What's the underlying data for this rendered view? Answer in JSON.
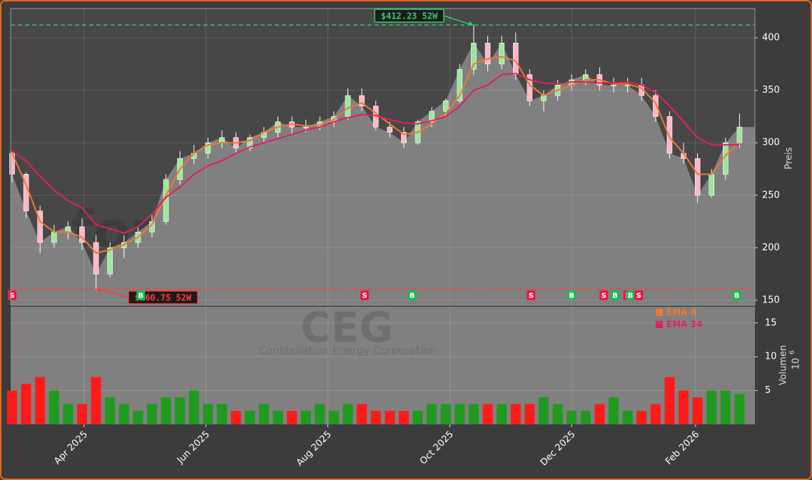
{
  "chart_data": [
    {
      "type": "candlestick",
      "watermark": "forexsignale.trade",
      "ticker": "CEG",
      "company": "Constellation Energy Corporation",
      "ylabel": "Preis",
      "xlim": [
        -0.1,
        53.1
      ],
      "ylim": [
        145.2,
        427.9
      ],
      "yticks": [
        150,
        200,
        250,
        300,
        350,
        400
      ],
      "grid": true,
      "up_color": "#9be89b",
      "down_color": "#ffb6c8",
      "area_color": "#808080",
      "open": [
        290,
        270,
        235,
        205,
        215,
        220,
        205,
        175,
        200,
        205,
        215,
        225,
        265,
        285,
        290,
        300,
        305,
        295,
        305,
        310,
        320,
        315,
        315,
        320,
        325,
        345,
        335,
        315,
        310,
        300,
        320,
        330,
        340,
        370,
        395,
        375,
        395,
        365,
        340,
        345,
        355,
        360,
        365,
        355,
        355,
        355,
        345,
        325,
        290,
        285,
        250,
        270,
        300
      ],
      "high": [
        292,
        272,
        240,
        222,
        225,
        228,
        212,
        205,
        212,
        220,
        232,
        270,
        292,
        298,
        305,
        312,
        310,
        308,
        315,
        325,
        325,
        322,
        325,
        330,
        352,
        352,
        340,
        320,
        315,
        322,
        334,
        342,
        375,
        412.23,
        402,
        402,
        405,
        370,
        350,
        360,
        365,
        370,
        372,
        362,
        362,
        362,
        350,
        330,
        300,
        290,
        275,
        305,
        328
      ],
      "low": [
        262,
        228,
        195,
        200,
        208,
        198,
        160.75,
        172,
        190,
        200,
        210,
        222,
        260,
        280,
        285,
        295,
        290,
        292,
        300,
        305,
        308,
        310,
        312,
        315,
        322,
        330,
        312,
        305,
        295,
        298,
        315,
        325,
        338,
        365,
        368,
        370,
        360,
        335,
        330,
        340,
        350,
        355,
        350,
        348,
        348,
        340,
        320,
        285,
        280,
        243,
        248,
        265,
        295
      ],
      "close": [
        270,
        235,
        205,
        215,
        220,
        205,
        175,
        200,
        205,
        215,
        225,
        265,
        285,
        290,
        300,
        305,
        295,
        305,
        310,
        320,
        315,
        315,
        320,
        325,
        345,
        335,
        315,
        310,
        300,
        320,
        330,
        340,
        370,
        395,
        375,
        395,
        365,
        340,
        345,
        355,
        360,
        365,
        355,
        355,
        355,
        345,
        325,
        290,
        285,
        250,
        270,
        300,
        315
      ],
      "series": [
        {
          "name": "EMA 8",
          "color": "#f07830",
          "values": [
            290,
            260,
            225,
            215,
            215,
            210,
            195,
            198,
            203,
            210,
            222,
            250,
            275,
            290,
            298,
            300,
            300,
            302,
            310,
            315,
            318,
            316,
            317,
            322,
            333,
            338,
            328,
            318,
            308,
            310,
            318,
            328,
            345,
            375,
            380,
            382,
            378,
            355,
            345,
            350,
            355,
            360,
            360,
            356,
            356,
            352,
            338,
            305,
            290,
            270,
            270,
            288,
            300
          ]
        },
        {
          "name": "EMA 34",
          "color": "#e0205a",
          "values": [
            292,
            283,
            268,
            255,
            245,
            238,
            222,
            218,
            214,
            220,
            232,
            248,
            258,
            270,
            278,
            283,
            290,
            296,
            300,
            304,
            308,
            312,
            315,
            320,
            324,
            327,
            326,
            322,
            319,
            318,
            321,
            325,
            335,
            350,
            355,
            365,
            366,
            360,
            357,
            356,
            358,
            358,
            357,
            357,
            358,
            355,
            348,
            335,
            320,
            305,
            298,
            298,
            298
          ]
        }
      ],
      "signals": [
        {
          "x": 0,
          "label": "S"
        },
        {
          "x": 9.2,
          "label": "B"
        },
        {
          "x": 25.2,
          "label": "S"
        },
        {
          "x": 28.6,
          "label": "B"
        },
        {
          "x": 37.1,
          "label": "S"
        },
        {
          "x": 40,
          "label": "B"
        },
        {
          "x": 42.3,
          "label": "S"
        },
        {
          "x": 43.1,
          "label": "B"
        },
        {
          "x": 44.0,
          "label": "S"
        },
        {
          "x": 44.2,
          "label": "B"
        },
        {
          "x": 44.8,
          "label": "S"
        },
        {
          "x": 51.8,
          "label": "B"
        }
      ],
      "annotations": [
        {
          "label": "$412.23 52W",
          "value": 412.23,
          "x": 33,
          "color": "#2ecc71"
        },
        {
          "label": "$160.75 52W",
          "value": 160.75,
          "x": 6,
          "color": "#ff3b3b"
        }
      ]
    },
    {
      "type": "bar",
      "ylabel": "Volumen",
      "ylabel_base": "10",
      "ylabel_power": "6",
      "xlim": [
        -0.1,
        53.1
      ],
      "ylim": [
        0,
        17.4
      ],
      "yticks": [
        5,
        10,
        15
      ],
      "grid": true,
      "up_color": "#1f9a1f",
      "down_color": "#ff1a1a",
      "xticks": [
        {
          "value": 5.14,
          "label": "Apr 2025"
        },
        {
          "value": 13.86,
          "label": "Jun 2025"
        },
        {
          "value": 22.57,
          "label": "Aug 2025"
        },
        {
          "value": 31.29,
          "label": "Oct 2025"
        },
        {
          "value": 40,
          "label": "Dec 2025"
        },
        {
          "value": 48.86,
          "label": "Feb 2026"
        }
      ],
      "values": [
        5,
        6,
        7,
        5,
        3,
        3,
        7,
        4,
        3,
        2,
        3,
        4,
        4,
        5,
        3,
        3,
        2,
        2,
        3,
        2,
        2,
        2,
        3,
        2,
        3,
        3,
        2,
        2,
        2,
        2,
        3,
        3,
        3,
        3,
        3,
        3,
        3,
        3,
        4,
        3,
        2,
        2,
        3,
        4,
        2,
        2,
        3,
        7,
        5,
        4,
        5,
        5,
        4.5
      ]
    }
  ]
}
